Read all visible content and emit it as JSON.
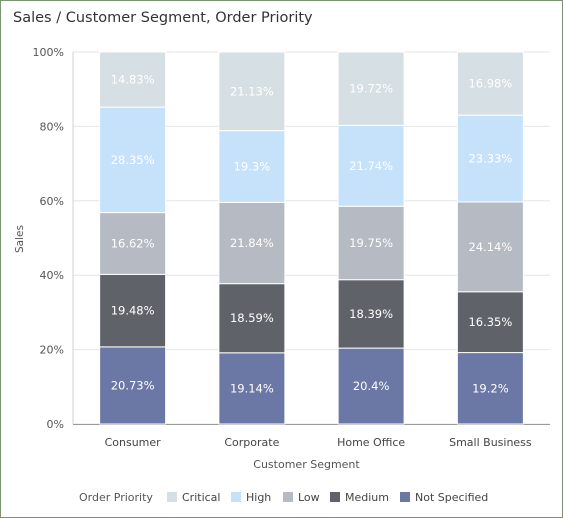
{
  "page": {
    "title": "Sales / Customer Segment, Order Priority"
  },
  "chart_data": {
    "type": "bar",
    "stacked": true,
    "normalized": true,
    "title": "Sales / Customer Segment, Order Priority",
    "xlabel": "Customer Segment",
    "ylabel": "Sales",
    "ylim": [
      0,
      100
    ],
    "yticks": [
      "0%",
      "20%",
      "40%",
      "60%",
      "80%",
      "100%"
    ],
    "grid": true,
    "categories": [
      "Consumer",
      "Corporate",
      "Home Office",
      "Small Business"
    ],
    "series": [
      {
        "name": "Not Specified",
        "color": "#6b77a5",
        "label_color": "#ffffff",
        "values": [
          20.73,
          19.14,
          20.4,
          19.2
        ],
        "labels": [
          "20.73%",
          "19.14%",
          "20.4%",
          "19.2%"
        ]
      },
      {
        "name": "Medium",
        "color": "#5f6369",
        "label_color": "#ffffff",
        "values": [
          19.48,
          18.59,
          18.39,
          16.35
        ],
        "labels": [
          "19.48%",
          "18.59%",
          "18.39%",
          "16.35%"
        ]
      },
      {
        "name": "Low",
        "color": "#b6bac3",
        "label_color": "#ffffff",
        "values": [
          16.62,
          21.84,
          19.75,
          24.14
        ],
        "labels": [
          "16.62%",
          "21.84%",
          "19.75%",
          "24.14%"
        ]
      },
      {
        "name": "High",
        "color": "#c6e2fb",
        "label_color": "#ffffff",
        "values": [
          28.35,
          19.3,
          21.74,
          23.33
        ],
        "labels": [
          "28.35%",
          "19.3%",
          "21.74%",
          "23.33%"
        ]
      },
      {
        "name": "Critical",
        "color": "#d6dfe3",
        "label_color": "#ffffff",
        "values": [
          14.83,
          21.13,
          19.72,
          16.98
        ],
        "labels": [
          "14.83%",
          "21.13%",
          "19.72%",
          "16.98%"
        ]
      }
    ],
    "legend": {
      "title": "Order Priority",
      "position": "bottom",
      "order": [
        "Critical",
        "High",
        "Low",
        "Medium",
        "Not Specified"
      ]
    }
  }
}
